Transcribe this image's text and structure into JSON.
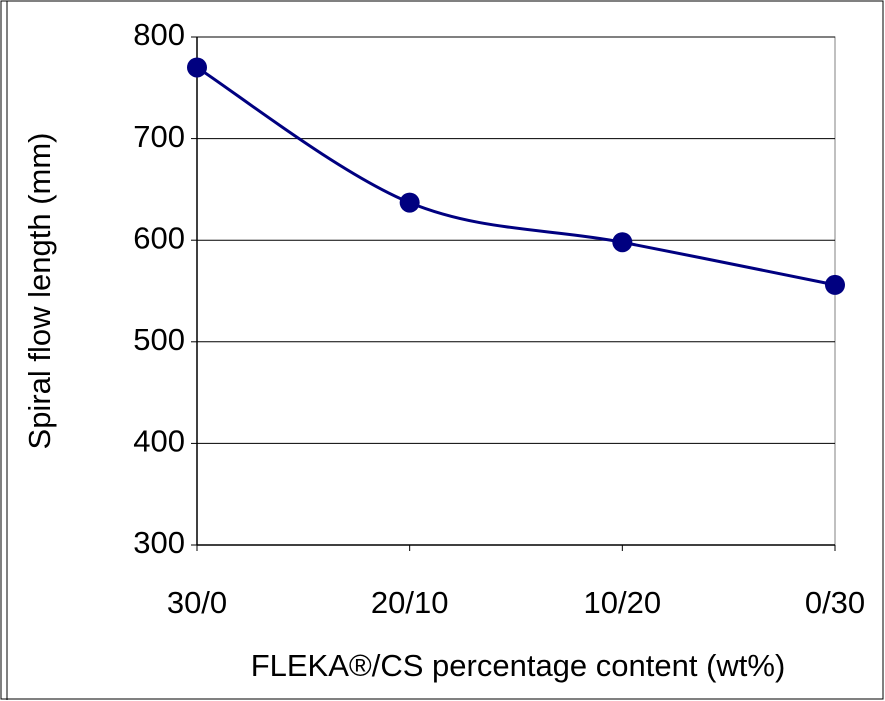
{
  "chart_data": {
    "type": "line",
    "categories": [
      "30/0",
      "20/10",
      "10/20",
      "0/30"
    ],
    "series": [
      {
        "name": "Spiral flow length",
        "color": "#000080",
        "values": [
          770,
          637,
          598,
          556
        ]
      }
    ],
    "y_label": "Spiral flow length (mm)",
    "x_label": "FLEKA®/CS percentage content (wt%)",
    "ylim": [
      300,
      800
    ],
    "yticks": [
      300,
      400,
      500,
      600,
      700,
      800
    ],
    "grid": true
  }
}
